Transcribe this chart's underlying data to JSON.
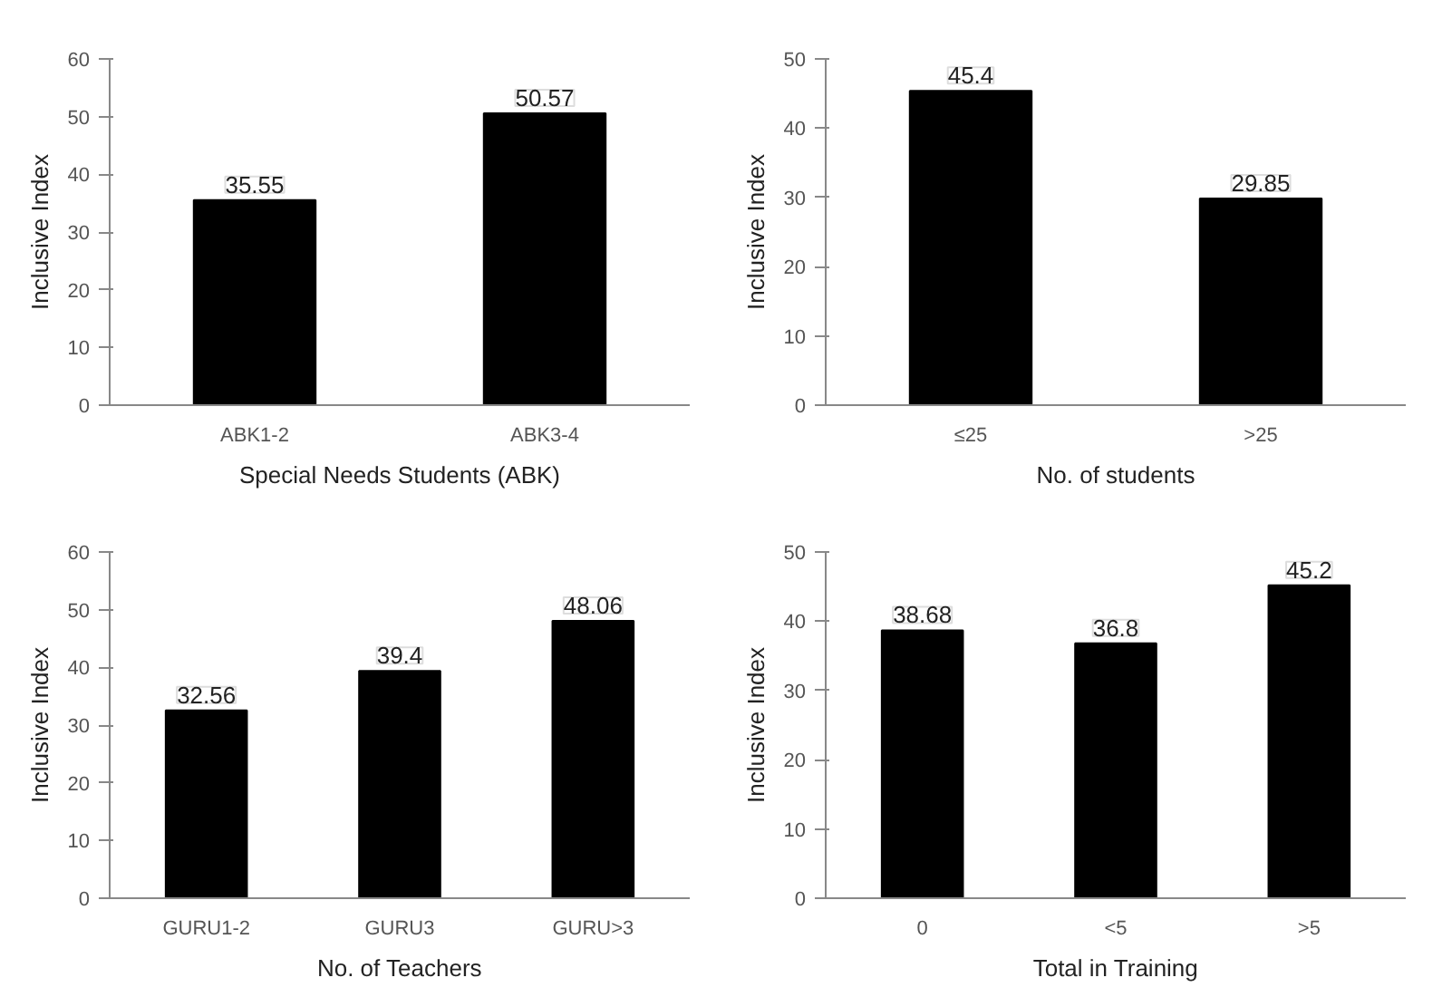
{
  "chart_data": [
    {
      "type": "bar",
      "categories": [
        "ABK1-2",
        "ABK3-4"
      ],
      "values": [
        35.55,
        50.57
      ],
      "color": "#000000",
      "xlabel": "Special Needs Students (ABK)",
      "ylabel": "Inclusive Index",
      "ylim": [
        0,
        60
      ],
      "yticks": [
        0,
        10,
        20,
        30,
        40,
        50,
        60
      ],
      "data_labels": true,
      "grid": false
    },
    {
      "type": "bar",
      "categories": [
        "≤25",
        ">25"
      ],
      "values": [
        45.4,
        29.85
      ],
      "color": "#000000",
      "xlabel": "No. of students",
      "ylabel": "Inclusive Index",
      "ylim": [
        0,
        50
      ],
      "yticks": [
        0,
        10,
        20,
        30,
        40,
        50
      ],
      "data_labels": true,
      "grid": false
    },
    {
      "type": "bar",
      "categories": [
        "GURU1-2",
        "GURU3",
        "GURU>3"
      ],
      "values": [
        32.56,
        39.4,
        48.06
      ],
      "color": "#000000",
      "xlabel": "No. of Teachers",
      "ylabel": "Inclusive Index",
      "ylim": [
        0,
        60
      ],
      "yticks": [
        0,
        10,
        20,
        30,
        40,
        50,
        60
      ],
      "data_labels": true,
      "grid": false
    },
    {
      "type": "bar",
      "categories": [
        "0",
        "<5",
        ">5"
      ],
      "values": [
        38.68,
        36.8,
        45.2
      ],
      "color": "#000000",
      "xlabel": "Total in Training",
      "ylabel": "Inclusive Index",
      "ylim": [
        0,
        50
      ],
      "yticks": [
        0,
        10,
        20,
        30,
        40,
        50
      ],
      "data_labels": true,
      "grid": false
    }
  ]
}
